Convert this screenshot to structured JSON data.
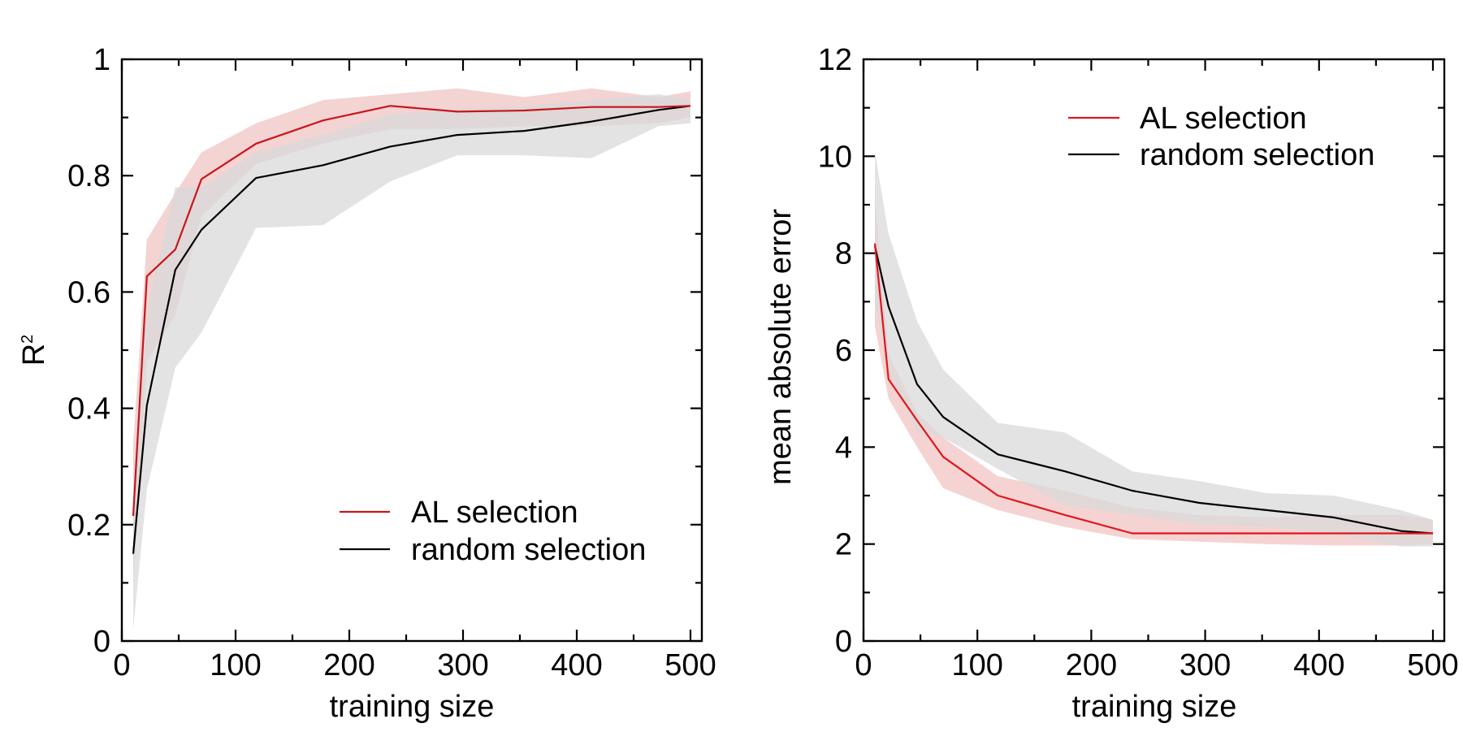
{
  "chart_data": [
    {
      "type": "line",
      "xlabel": "training size",
      "ylabel": "R",
      "ylabel_superscript": "2",
      "xlim": [
        0,
        510
      ],
      "ylim": [
        0,
        1
      ],
      "xticks": [
        0,
        100,
        200,
        300,
        400,
        500
      ],
      "xtick_labels": [
        "0",
        "100",
        "200",
        "300",
        "400",
        "500"
      ],
      "yticks": [
        0,
        0.2,
        0.4,
        0.6,
        0.8,
        1
      ],
      "ytick_labels": [
        "0",
        "0.2",
        "0.4",
        "0.6",
        "0.8",
        "1"
      ],
      "grid": false,
      "legend_position": "bottom-right",
      "series": [
        {
          "name": "AL selection",
          "color": "#c8151b",
          "band_color": "#f0c4c4",
          "x": [
            10,
            22,
            47,
            70,
            118,
            177,
            236,
            295,
            354,
            413,
            472,
            500
          ],
          "y": [
            0.215,
            0.627,
            0.673,
            0.794,
            0.855,
            0.895,
            0.92,
            0.91,
            0.912,
            0.918,
            0.918,
            0.92
          ],
          "lower": [
            0.1,
            0.48,
            0.56,
            0.73,
            0.82,
            0.855,
            0.88,
            0.88,
            0.885,
            0.885,
            0.89,
            0.9
          ],
          "upper": [
            0.34,
            0.69,
            0.77,
            0.84,
            0.89,
            0.93,
            0.94,
            0.95,
            0.935,
            0.95,
            0.935,
            0.945
          ]
        },
        {
          "name": "random selection",
          "color": "#000000",
          "band_color": "#d9d9d9",
          "x": [
            10,
            22,
            47,
            70,
            118,
            177,
            236,
            295,
            354,
            413,
            472,
            500
          ],
          "y": [
            0.15,
            0.405,
            0.638,
            0.707,
            0.796,
            0.818,
            0.85,
            0.87,
            0.877,
            0.893,
            0.913,
            0.92
          ],
          "lower": [
            0.02,
            0.26,
            0.47,
            0.53,
            0.71,
            0.715,
            0.79,
            0.835,
            0.835,
            0.83,
            0.885,
            0.89
          ],
          "upper": [
            0.29,
            0.57,
            0.78,
            0.78,
            0.84,
            0.87,
            0.905,
            0.915,
            0.92,
            0.93,
            0.94,
            0.93
          ]
        }
      ]
    },
    {
      "type": "line",
      "xlabel": "training size",
      "ylabel": "mean absolute error",
      "xlim": [
        0,
        510
      ],
      "ylim": [
        0,
        12
      ],
      "xticks": [
        0,
        100,
        200,
        300,
        400,
        500
      ],
      "xtick_labels": [
        "0",
        "100",
        "200",
        "300",
        "400",
        "500"
      ],
      "yticks": [
        0,
        2,
        4,
        6,
        8,
        10,
        12
      ],
      "ytick_labels": [
        "0",
        "2",
        "4",
        "6",
        "8",
        "10",
        "12"
      ],
      "grid": false,
      "legend_position": "top-right",
      "series": [
        {
          "name": "AL selection",
          "color": "#e0161c",
          "band_color": "#f3c4c4",
          "x": [
            10,
            22,
            47,
            70,
            118,
            177,
            236,
            295,
            354,
            413,
            472,
            500
          ],
          "y": [
            8.2,
            5.4,
            4.55,
            3.8,
            3.0,
            2.6,
            2.22,
            2.22,
            2.22,
            2.22,
            2.22,
            2.22
          ],
          "lower": [
            6.5,
            5.0,
            4.0,
            3.15,
            2.7,
            2.35,
            2.1,
            2.05,
            2.0,
            1.97,
            1.97,
            2.0
          ],
          "upper": [
            9.2,
            5.9,
            4.7,
            4.2,
            3.4,
            3.1,
            2.75,
            2.6,
            2.55,
            2.6,
            2.6,
            2.5
          ]
        },
        {
          "name": "random selection",
          "color": "#000000",
          "band_color": "#d9d9d9",
          "x": [
            10,
            22,
            47,
            70,
            118,
            177,
            236,
            295,
            354,
            413,
            472,
            500
          ],
          "y": [
            8.15,
            6.9,
            5.3,
            4.62,
            3.85,
            3.5,
            3.1,
            2.85,
            2.7,
            2.55,
            2.27,
            2.22
          ],
          "lower": [
            7.0,
            5.6,
            4.3,
            4.2,
            3.55,
            2.8,
            2.6,
            2.4,
            2.35,
            2.2,
            1.95,
            1.95
          ],
          "upper": [
            10.1,
            8.4,
            6.6,
            5.6,
            4.5,
            4.3,
            3.5,
            3.3,
            3.05,
            3.0,
            2.7,
            2.5
          ]
        }
      ]
    }
  ]
}
